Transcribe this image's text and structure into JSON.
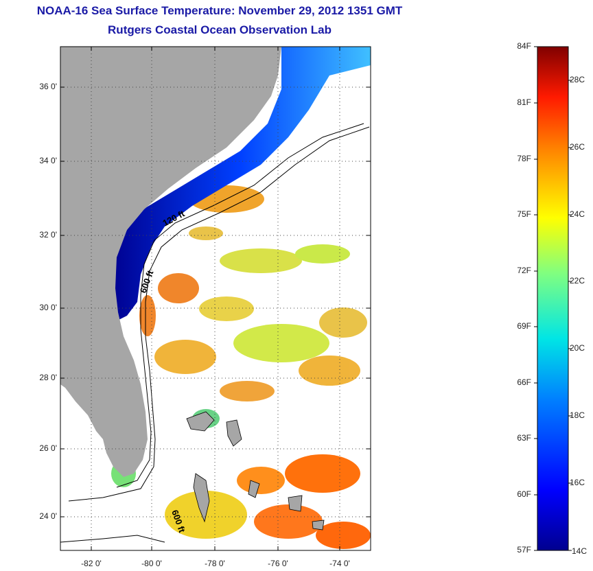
{
  "header": {
    "title": "NOAA-16 Sea Surface Temperature:  November 29, 2012 1351 GMT",
    "subtitle": "Rutgers Coastal Ocean Observation Lab"
  },
  "map": {
    "lat_labels": [
      "36 0'",
      "34 0'",
      "32 0'",
      "30 0'",
      "28 0'",
      "26 0'",
      "24 0'"
    ],
    "lon_labels": [
      "-82 0'",
      "-80 0'",
      "-78 0'",
      "-76 0'",
      "-74 0'"
    ],
    "contour_labels": [
      "120 ft",
      "600 ft",
      "600 ft"
    ]
  },
  "colorbar": {
    "fahrenheit": [
      "84F",
      "81F",
      "78F",
      "75F",
      "72F",
      "69F",
      "66F",
      "63F",
      "60F",
      "57F"
    ],
    "celsius": [
      "28C",
      "26C",
      "24C",
      "22C",
      "20C",
      "18C",
      "16C",
      "14C"
    ]
  },
  "colors": {
    "title": "#1a1aa6",
    "land": "#a6a6a6",
    "cold": "#00008f",
    "warm": "#ff6a00"
  }
}
